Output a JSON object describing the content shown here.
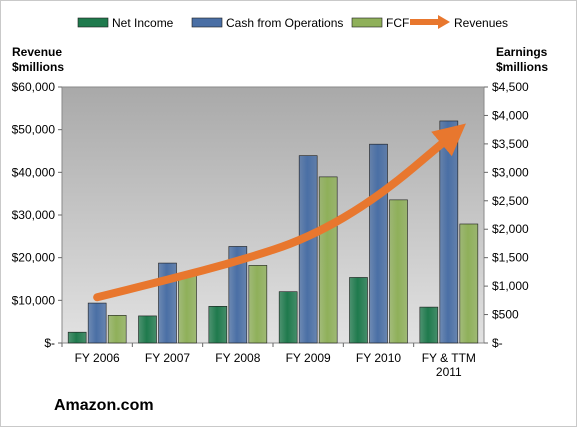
{
  "chart_data": {
    "type": "bar",
    "title": "",
    "company": "Amazon.com",
    "categories": [
      "FY 2006",
      "FY 2007",
      "FY 2008",
      "FY 2009",
      "FY 2010",
      "FY & TTM 2011"
    ],
    "category_labels": [
      [
        "FY 2006"
      ],
      [
        "FY 2007"
      ],
      [
        "FY 2008"
      ],
      [
        "FY 2009"
      ],
      [
        "FY 2010"
      ],
      [
        "FY & TTM",
        "2011"
      ]
    ],
    "left_axis": {
      "title_lines": [
        "Revenue",
        "$millions"
      ],
      "ylim": [
        0,
        60000
      ],
      "ticks": [
        0,
        10000,
        20000,
        30000,
        40000,
        50000,
        60000
      ],
      "tick_labels": [
        "$-",
        "$10,000",
        "$20,000",
        "$30,000",
        "$40,000",
        "$50,000",
        "$60,000"
      ]
    },
    "right_axis": {
      "title_lines": [
        "Earnings",
        "$millions"
      ],
      "ylim": [
        0,
        4500
      ],
      "ticks": [
        0,
        500,
        1000,
        1500,
        2000,
        2500,
        3000,
        3500,
        4000,
        4500
      ],
      "tick_labels": [
        "$-",
        "$500",
        "$1,000",
        "$1,500",
        "$2,000",
        "$2,500",
        "$3,000",
        "$3,500",
        "$4,000",
        "$4,500"
      ]
    },
    "series": [
      {
        "name": "Net Income",
        "axis": "right",
        "color": "#1f7a4d",
        "values": [
          190,
          476,
          645,
          902,
          1152,
          631
        ]
      },
      {
        "name": "Cash from Operations",
        "axis": "right",
        "color": "#4a6fa5",
        "values": [
          702,
          1405,
          1697,
          3293,
          3495,
          3903
        ]
      },
      {
        "name": "FCF",
        "axis": "right",
        "color": "#8fb05a",
        "values": [
          486,
          1181,
          1364,
          2920,
          2516,
          2092
        ]
      }
    ],
    "trend": {
      "name": "Revenues",
      "axis": "left",
      "color": "#e8772e",
      "values": [
        10711,
        14835,
        19166,
        24509,
        34204,
        48077
      ]
    },
    "legend_position": "top",
    "grid": false,
    "plot_background": "#c8c8c8"
  }
}
